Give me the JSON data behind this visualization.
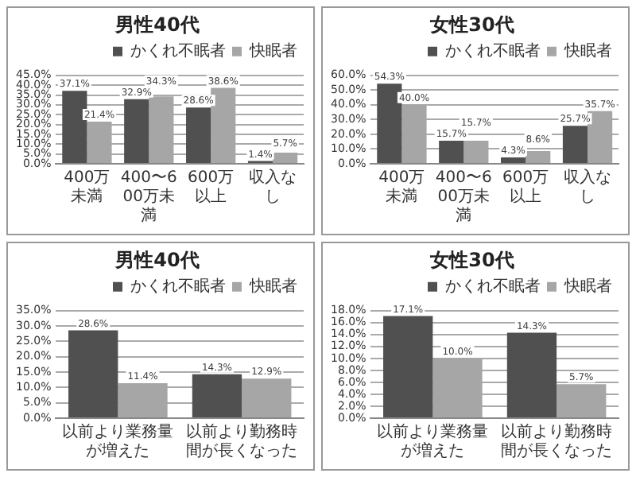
{
  "chart_data": [
    {
      "type": "bar",
      "title": "男性40代",
      "categories": [
        "400万未満",
        "400〜600万未満",
        "600万以上",
        "収入なし"
      ],
      "series": [
        {
          "name": "かくれ不眠者",
          "color": "#505050",
          "values": [
            37.1,
            32.9,
            28.6,
            1.4
          ],
          "value_labels": [
            "37.1%",
            "32.9%",
            "28.6%",
            "1.4%"
          ]
        },
        {
          "name": "快眠者",
          "color": "#a6a6a6",
          "values": [
            21.4,
            34.3,
            38.6,
            5.7
          ],
          "value_labels": [
            "21.4%",
            "34.3%",
            "38.6%",
            "5.7%"
          ]
        }
      ],
      "ylim": [
        0,
        45
      ],
      "yticks": [
        {
          "value": 0,
          "label": "0.0%"
        },
        {
          "value": 5,
          "label": "5.0%"
        },
        {
          "value": 10,
          "label": "10.0%"
        },
        {
          "value": 15,
          "label": "15.0%"
        },
        {
          "value": 20,
          "label": "20.0%"
        },
        {
          "value": 25,
          "label": "25.0%"
        },
        {
          "value": 30,
          "label": "30.0%"
        },
        {
          "value": 35,
          "label": "35.0%"
        },
        {
          "value": 40,
          "label": "40.0%"
        },
        {
          "value": 45,
          "label": "45.0%"
        }
      ],
      "grid": "y",
      "legend": "top right"
    },
    {
      "type": "bar",
      "title": "女性30代",
      "categories": [
        "400万未満",
        "400〜600万未満",
        "600万以上",
        "収入なし"
      ],
      "series": [
        {
          "name": "かくれ不眠者",
          "color": "#505050",
          "values": [
            54.3,
            15.7,
            4.3,
            25.7
          ],
          "value_labels": [
            "54.3%",
            "15.7%",
            "4.3%",
            "25.7%"
          ]
        },
        {
          "name": "快眠者",
          "color": "#a6a6a6",
          "values": [
            40.0,
            15.7,
            8.6,
            35.7
          ],
          "value_labels": [
            "40.0%",
            "15.7%",
            "8.6%",
            "35.7%"
          ]
        }
      ],
      "ylim": [
        0,
        60
      ],
      "yticks": [
        {
          "value": 0,
          "label": "0.0%"
        },
        {
          "value": 10,
          "label": "10.0%"
        },
        {
          "value": 20,
          "label": "20.0%"
        },
        {
          "value": 30,
          "label": "30.0%"
        },
        {
          "value": 40,
          "label": "40.0%"
        },
        {
          "value": 50,
          "label": "50.0%"
        },
        {
          "value": 60,
          "label": "60.0%"
        }
      ],
      "grid": "y",
      "legend": "top right"
    },
    {
      "type": "bar",
      "title": "男性40代",
      "categories": [
        "以前より業務量が増えた",
        "以前より勤務時間が長くなった"
      ],
      "series": [
        {
          "name": "かくれ不眠者",
          "color": "#505050",
          "values": [
            28.6,
            14.3
          ],
          "value_labels": [
            "28.6%",
            "14.3%"
          ]
        },
        {
          "name": "快眠者",
          "color": "#a6a6a6",
          "values": [
            11.4,
            12.9
          ],
          "value_labels": [
            "11.4%",
            "12.9%"
          ]
        }
      ],
      "ylim": [
        0,
        35
      ],
      "yticks": [
        {
          "value": 0,
          "label": "0.0%"
        },
        {
          "value": 5,
          "label": "5.0%"
        },
        {
          "value": 10,
          "label": "10.0%"
        },
        {
          "value": 15,
          "label": "15.0%"
        },
        {
          "value": 20,
          "label": "20.0%"
        },
        {
          "value": 25,
          "label": "25.0%"
        },
        {
          "value": 30,
          "label": "30.0%"
        },
        {
          "value": 35,
          "label": "35.0%"
        }
      ],
      "grid": "y",
      "legend": "top right"
    },
    {
      "type": "bar",
      "title": "女性30代",
      "categories": [
        "以前より業務量が増えた",
        "以前より勤務時間が長くなった"
      ],
      "series": [
        {
          "name": "かくれ不眠者",
          "color": "#505050",
          "values": [
            17.1,
            14.3
          ],
          "value_labels": [
            "17.1%",
            "14.3%"
          ]
        },
        {
          "name": "快眠者",
          "color": "#a6a6a6",
          "values": [
            10.0,
            5.7
          ],
          "value_labels": [
            "10.0%",
            "5.7%"
          ]
        }
      ],
      "ylim": [
        0,
        18
      ],
      "yticks": [
        {
          "value": 0,
          "label": "0.0%"
        },
        {
          "value": 2,
          "label": "2.0%"
        },
        {
          "value": 4,
          "label": "4.0%"
        },
        {
          "value": 6,
          "label": "6.0%"
        },
        {
          "value": 8,
          "label": "8.0%"
        },
        {
          "value": 10,
          "label": "10.0%"
        },
        {
          "value": 12,
          "label": "12.0%"
        },
        {
          "value": 14,
          "label": "14.0%"
        },
        {
          "value": 16,
          "label": "16.0%"
        },
        {
          "value": 18,
          "label": "18.0%"
        }
      ],
      "grid": "y",
      "legend": "top right"
    }
  ]
}
